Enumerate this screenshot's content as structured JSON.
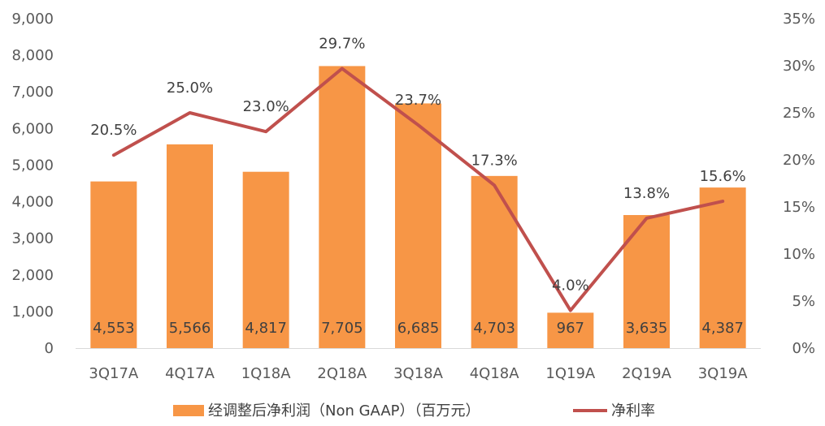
{
  "chart_data": {
    "type": "bar",
    "categories": [
      "3Q17A",
      "4Q17A",
      "1Q18A",
      "2Q18A",
      "3Q18A",
      "4Q18A",
      "1Q19A",
      "2Q19A",
      "3Q19A"
    ],
    "series": [
      {
        "name": "经调整后净利润（Non GAAP）（百万元）",
        "type": "bar",
        "axis": "left",
        "values": [
          4553,
          5566,
          4817,
          7705,
          6685,
          4703,
          967,
          3635,
          4387
        ],
        "data_labels": [
          "4,553",
          "5,566",
          "4,817",
          "7,705",
          "6,685",
          "4,703",
          "967",
          "3,635",
          "4,387"
        ]
      },
      {
        "name": "净利率",
        "type": "line",
        "axis": "right",
        "values": [
          20.5,
          25.0,
          23.0,
          29.7,
          23.7,
          17.3,
          4.0,
          13.8,
          15.6
        ],
        "data_labels": [
          "20.5%",
          "25.0%",
          "23.0%",
          "29.7%",
          "23.7%",
          "17.3%",
          "4.0%",
          "13.8%",
          "15.6%"
        ]
      }
    ],
    "ylim_left": [
      0,
      9000
    ],
    "ylim_right": [
      0,
      35
    ],
    "left_ticks": [
      "0",
      "1,000",
      "2,000",
      "3,000",
      "4,000",
      "5,000",
      "6,000",
      "7,000",
      "8,000",
      "9,000"
    ],
    "right_ticks": [
      "0%",
      "5%",
      "10%",
      "15%",
      "20%",
      "25%",
      "30%",
      "35%"
    ],
    "grid": false,
    "legend_position": "bottom",
    "legend": [
      "经调整后净利润（Non GAAP）（百万元）",
      "净利率"
    ],
    "colors": {
      "bar": "#F79646",
      "line": "#C0504D",
      "axis": "#D9D9D9",
      "text": "#595959"
    }
  }
}
